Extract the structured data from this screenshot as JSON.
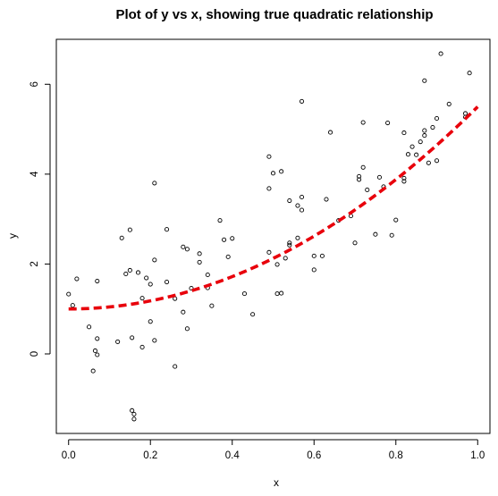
{
  "chart_data": {
    "type": "scatter",
    "title": "Plot of y vs x, showing true quadratic relationship",
    "xlabel": "x",
    "ylabel": "y",
    "xlim": [
      -0.03,
      1.03
    ],
    "ylim": [
      -1.77,
      7.0
    ],
    "x_ticks": [
      0.0,
      0.2,
      0.4,
      0.6,
      0.8,
      1.0
    ],
    "x_tick_labels": [
      "0.0",
      "0.2",
      "0.4",
      "0.6",
      "0.8",
      "1.0"
    ],
    "y_ticks": [
      0,
      2,
      4,
      6
    ],
    "y_tick_labels": [
      "0",
      "2",
      "4",
      "6"
    ],
    "grid": false,
    "legend": "none",
    "series": [
      {
        "kind": "points",
        "marker": "open-circle",
        "color": "#000000",
        "points": [
          [
            0.0,
            1.33
          ],
          [
            0.02,
            1.67
          ],
          [
            0.01,
            1.08
          ],
          [
            0.05,
            0.6
          ],
          [
            0.07,
            1.62
          ],
          [
            0.07,
            0.34
          ],
          [
            0.06,
            -0.38
          ],
          [
            0.065,
            0.07
          ],
          [
            0.07,
            -0.02
          ],
          [
            0.12,
            0.27
          ],
          [
            0.13,
            2.58
          ],
          [
            0.15,
            2.76
          ],
          [
            0.14,
            1.78
          ],
          [
            0.15,
            1.86
          ],
          [
            0.155,
            0.36
          ],
          [
            0.155,
            -1.26
          ],
          [
            0.16,
            -1.34
          ],
          [
            0.16,
            -1.45
          ],
          [
            0.17,
            1.81
          ],
          [
            0.18,
            1.24
          ],
          [
            0.18,
            0.15
          ],
          [
            0.19,
            1.69
          ],
          [
            0.2,
            1.55
          ],
          [
            0.2,
            0.72
          ],
          [
            0.21,
            2.09
          ],
          [
            0.21,
            0.3
          ],
          [
            0.21,
            3.8
          ],
          [
            0.24,
            2.77
          ],
          [
            0.24,
            1.6
          ],
          [
            0.26,
            -0.28
          ],
          [
            0.26,
            1.23
          ],
          [
            0.28,
            0.93
          ],
          [
            0.28,
            2.38
          ],
          [
            0.29,
            2.33
          ],
          [
            0.29,
            0.56
          ],
          [
            0.3,
            1.46
          ],
          [
            0.32,
            2.23
          ],
          [
            0.32,
            2.04
          ],
          [
            0.34,
            1.47
          ],
          [
            0.35,
            1.07
          ],
          [
            0.34,
            1.76
          ],
          [
            0.37,
            2.97
          ],
          [
            0.38,
            2.54
          ],
          [
            0.4,
            2.57
          ],
          [
            0.39,
            2.16
          ],
          [
            0.43,
            1.34
          ],
          [
            0.45,
            0.88
          ],
          [
            0.49,
            2.26
          ],
          [
            0.49,
            3.68
          ],
          [
            0.49,
            4.39
          ],
          [
            0.5,
            4.02
          ],
          [
            0.51,
            1.99
          ],
          [
            0.51,
            1.34
          ],
          [
            0.52,
            4.06
          ],
          [
            0.52,
            1.35
          ],
          [
            0.53,
            2.13
          ],
          [
            0.54,
            3.41
          ],
          [
            0.54,
            2.42
          ],
          [
            0.54,
            2.47
          ],
          [
            0.56,
            3.3
          ],
          [
            0.56,
            2.58
          ],
          [
            0.57,
            3.49
          ],
          [
            0.57,
            3.2
          ],
          [
            0.57,
            5.62
          ],
          [
            0.6,
            2.18
          ],
          [
            0.6,
            1.87
          ],
          [
            0.62,
            2.18
          ],
          [
            0.63,
            3.44
          ],
          [
            0.64,
            4.93
          ],
          [
            0.66,
            2.97
          ],
          [
            0.69,
            3.07
          ],
          [
            0.7,
            2.47
          ],
          [
            0.71,
            3.88
          ],
          [
            0.71,
            3.95
          ],
          [
            0.72,
            4.15
          ],
          [
            0.72,
            5.15
          ],
          [
            0.73,
            3.65
          ],
          [
            0.75,
            2.66
          ],
          [
            0.76,
            3.93
          ],
          [
            0.77,
            3.72
          ],
          [
            0.78,
            5.14
          ],
          [
            0.79,
            2.64
          ],
          [
            0.8,
            2.98
          ],
          [
            0.82,
            4.92
          ],
          [
            0.82,
            3.84
          ],
          [
            0.82,
            3.91
          ],
          [
            0.83,
            4.44
          ],
          [
            0.84,
            4.61
          ],
          [
            0.85,
            4.43
          ],
          [
            0.86,
            4.72
          ],
          [
            0.87,
            4.86
          ],
          [
            0.87,
            4.97
          ],
          [
            0.87,
            6.08
          ],
          [
            0.88,
            4.25
          ],
          [
            0.89,
            5.04
          ],
          [
            0.9,
            5.24
          ],
          [
            0.9,
            4.3
          ],
          [
            0.91,
            6.68
          ],
          [
            0.93,
            5.56
          ],
          [
            0.97,
            5.35
          ],
          [
            0.97,
            5.27
          ],
          [
            0.98,
            6.25
          ]
        ]
      },
      {
        "kind": "curve",
        "style": "dashed",
        "color": "#e8000b",
        "equation": "y = 1 + 4.5 x^2",
        "x_from": 0.0,
        "x_to": 1.0
      }
    ]
  }
}
